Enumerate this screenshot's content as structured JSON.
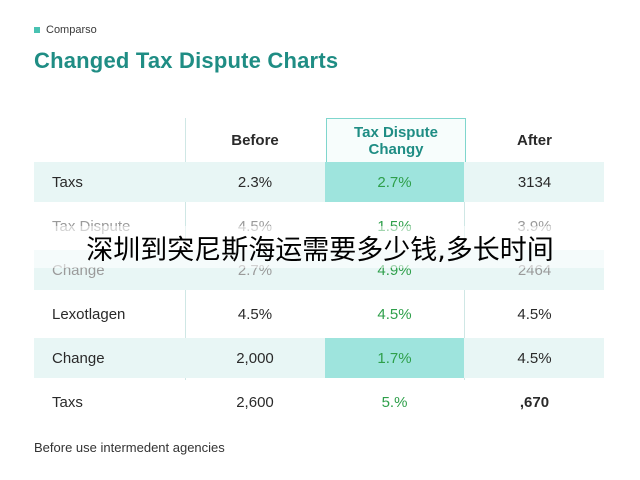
{
  "header": {
    "eyebrow": "Comparso",
    "title": "Changed Tax Dispute Charts"
  },
  "table": {
    "columns": {
      "before": "Before",
      "dispute_line1": "Tax Dispute",
      "dispute_line2": "Changy",
      "after": "After"
    },
    "rows": [
      {
        "label": "Taxs",
        "before": "2.3%",
        "dispute": "2.7%",
        "after": "3134"
      },
      {
        "label": "Tax Dispute",
        "before": "4.5%",
        "dispute": "1.5%",
        "after": "3.9%"
      },
      {
        "label": "Change",
        "before": "2.7%",
        "dispute": "4.9%",
        "after": "2464"
      },
      {
        "label": "Lexotlagen",
        "before": "4.5%",
        "dispute": "4.5%",
        "after": "4.5%"
      },
      {
        "label": "Change",
        "before": "2,000",
        "dispute": "1.7%",
        "after": "4.5%"
      },
      {
        "label": "Taxs",
        "before": "2,600",
        "dispute": "5.%",
        "after": ",670"
      }
    ]
  },
  "overlay_text": "深圳到突尼斯海运需要多少钱,多长时间",
  "footnote": "Before use intermedent agencies",
  "colors": {
    "accent": "#1f8d84",
    "highlight": "#9ee4dd",
    "row_shade": "#e8f6f5",
    "dispute_text": "#2e9f4a"
  }
}
